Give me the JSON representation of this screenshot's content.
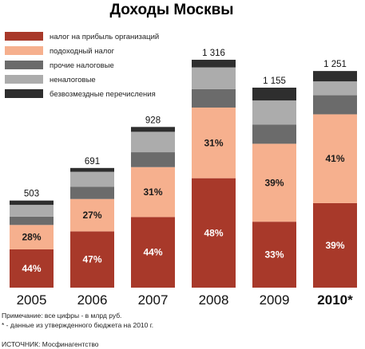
{
  "chart_data": {
    "type": "bar",
    "stacked": true,
    "title": "Доходы Москвы",
    "categories": [
      "2005",
      "2006",
      "2007",
      "2008",
      "2009",
      "2010*"
    ],
    "totals": [
      503,
      691,
      928,
      1316,
      1155,
      1251
    ],
    "total_labels": [
      "503",
      "691",
      "928",
      "1 316",
      "1 155",
      "1 251"
    ],
    "highlight_category": "2010*",
    "series": [
      {
        "name": "налог на прибыль организаций",
        "color": "#a8392a",
        "label_color": "#ffffff",
        "values": [
          221,
          325,
          408,
          632,
          381,
          488
        ],
        "percent_labels": [
          "44%",
          "47%",
          "44%",
          "48%",
          "33%",
          "39%"
        ]
      },
      {
        "name": "подоходный налог",
        "color": "#f6b08e",
        "label_color": "#1a1a1a",
        "values": [
          141,
          187,
          288,
          408,
          450,
          513
        ],
        "percent_labels": [
          "28%",
          "27%",
          "31%",
          "31%",
          "39%",
          "41%"
        ]
      },
      {
        "name": "прочие налоговые",
        "color": "#6b6b6b",
        "label_color": "#ffffff",
        "values": [
          48,
          70,
          86,
          106,
          110,
          110
        ],
        "percent_labels": [
          "",
          "",
          "",
          "",
          "",
          ""
        ]
      },
      {
        "name": "неналоговые",
        "color": "#acacac",
        "label_color": "#1a1a1a",
        "values": [
          68,
          87,
          118,
          126,
          140,
          80
        ],
        "percent_labels": [
          "",
          "",
          "",
          "",
          "",
          ""
        ]
      },
      {
        "name": "безвозмездные перечисления",
        "color": "#2e2e2e",
        "label_color": "#ffffff",
        "values": [
          25,
          22,
          28,
          44,
          74,
          60
        ],
        "percent_labels": [
          "",
          "",
          "",
          "",
          "",
          ""
        ]
      }
    ],
    "ylim": [
      0,
      1316
    ],
    "grid": false,
    "legend": "top-left"
  },
  "notes": {
    "line1": "Примечание: все цифры - в млрд руб.",
    "line2": "* - данные из утвержденного бюджета на 2010 г."
  },
  "source": "ИСТОЧНИК: Мосфинагентство"
}
